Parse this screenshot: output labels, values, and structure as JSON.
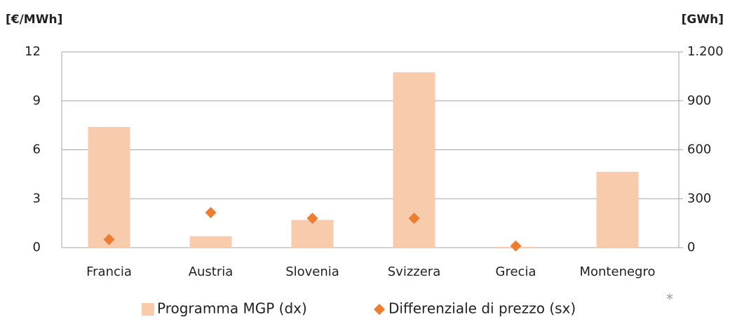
{
  "chart_data": {
    "type": "bar-scatter",
    "y_label": "[€/MWh]",
    "y2_label": "[GWh]",
    "annotation": "*",
    "categories": [
      "Francia",
      "Austria",
      "Slovenia",
      "Svizzera",
      "Grecia",
      "Montenegro"
    ],
    "series": [
      {
        "name": "Programma MGP (dx)",
        "color": "#f8cbad",
        "axis": "y2",
        "type": "bar",
        "values": [
          740,
          70,
          170,
          1075,
          5,
          465
        ]
      },
      {
        "name": "Differenziale di prezzo (sx)",
        "color": "#ed7d31",
        "type": "scatter",
        "values": [
          0.5,
          2.15,
          1.8,
          1.8,
          0.1,
          null
        ]
      }
    ],
    "ylim": [
      0,
      12
    ],
    "yticks": [
      0,
      3,
      6,
      9,
      12
    ],
    "y2lim": [
      0,
      1200
    ],
    "y2ticks": [
      0,
      300,
      600,
      900,
      {
        "value": 1200,
        "label": "1.200"
      }
    ],
    "grid": true
  }
}
